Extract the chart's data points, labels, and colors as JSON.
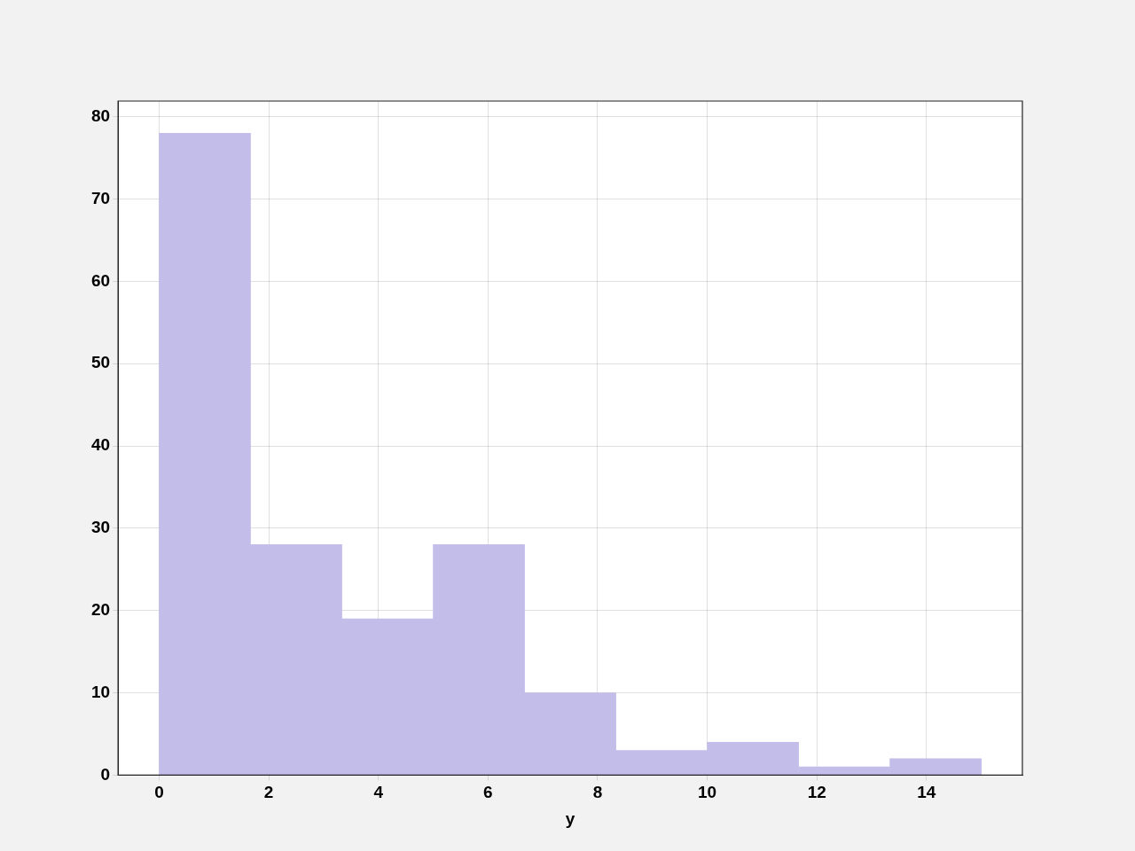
{
  "chart_data": {
    "type": "histogram",
    "xlabel": "y",
    "bins": [
      0,
      1.6667,
      3.3333,
      5,
      6.6667,
      8.3333,
      10,
      11.6667,
      13.3333,
      15
    ],
    "values": [
      78,
      28,
      19,
      28,
      10,
      3,
      4,
      1,
      2
    ],
    "color": "#c3bdea",
    "xlim": [
      -0.75,
      15.75
    ],
    "xticks": [
      0,
      2,
      4,
      6,
      8,
      10,
      12,
      14
    ],
    "ylim": [
      0,
      81.9
    ],
    "yticks": [
      0,
      10,
      20,
      30,
      40,
      50,
      60,
      70,
      80
    ],
    "grid": true
  }
}
